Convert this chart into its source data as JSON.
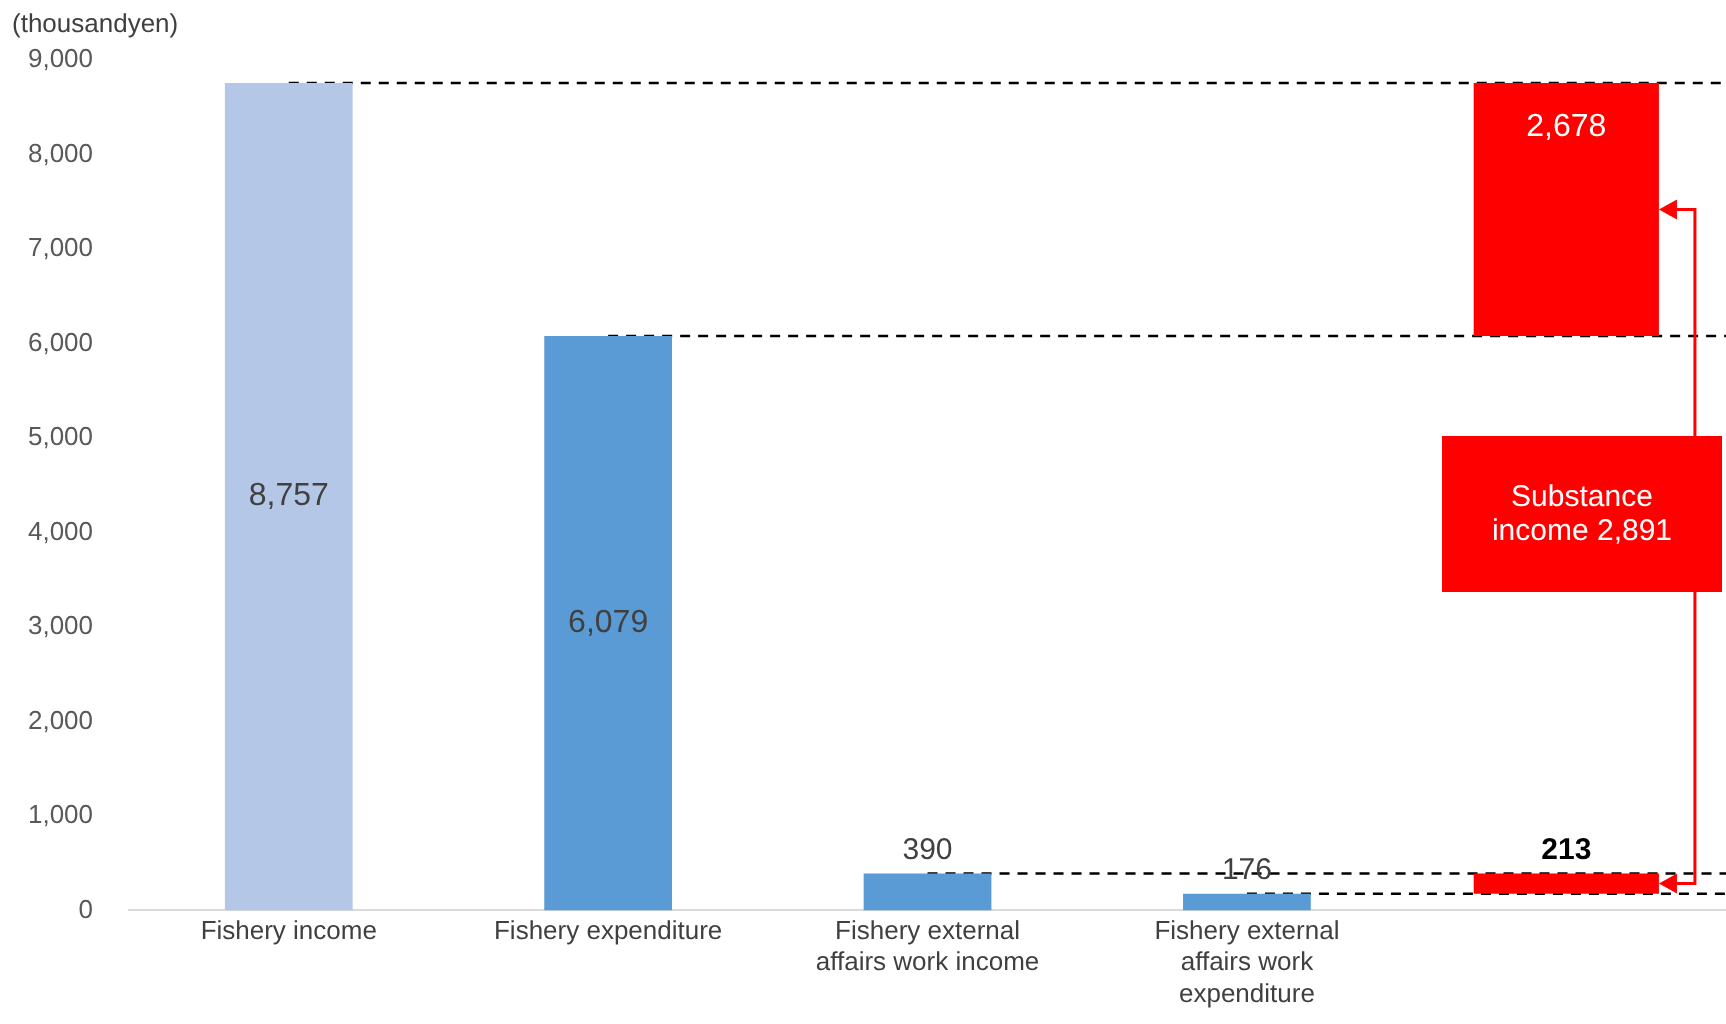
{
  "chart_data": {
    "type": "bar",
    "ylabel": "(thousandyen)",
    "categories": [
      "Fishery income",
      "Fishery expenditure",
      "Fishery external affairs work income",
      "Fishery external affairs work expenditure",
      null
    ],
    "series": [
      {
        "colors": [
          "#b4c7e7",
          "#5b9bd5",
          "#5b9bd5",
          "#5b9bd5",
          null
        ],
        "values": [
          8757,
          6079,
          390,
          176,
          null
        ],
        "value_labels": [
          "8,757",
          "6,079",
          "390",
          "176",
          null
        ]
      },
      {
        "color": "#ff0000",
        "values": [
          null,
          null,
          null,
          null,
          2678
        ],
        "base": [
          null,
          null,
          null,
          null,
          6079
        ],
        "value_labels": [
          null,
          null,
          null,
          null,
          "2,678"
        ]
      },
      {
        "color": "#ff0000",
        "values": [
          null,
          null,
          null,
          null,
          213
        ],
        "base": [
          null,
          null,
          null,
          null,
          177
        ],
        "value_labels": [
          null,
          null,
          null,
          null,
          "213"
        ]
      }
    ],
    "ylim": [
      0,
      9000
    ],
    "yticks": [
      {
        "value": 0,
        "label": "0"
      },
      {
        "value": 1000,
        "label": "1,000"
      },
      {
        "value": 2000,
        "label": "2,000"
      },
      {
        "value": 3000,
        "label": "3,000"
      },
      {
        "value": 4000,
        "label": "4,000"
      },
      {
        "value": 5000,
        "label": "5,000"
      },
      {
        "value": 6000,
        "label": "6,000"
      },
      {
        "value": 7000,
        "label": "7,000"
      },
      {
        "value": 8000,
        "label": "8,000"
      },
      {
        "value": 9000,
        "label": "9,000"
      }
    ],
    "ref_lines": [
      {
        "axis": "y",
        "value": 8757,
        "line_style": "dashed",
        "color": "#000000"
      },
      {
        "axis": "y",
        "value": 6079,
        "line_style": "dashed",
        "color": "#000000"
      },
      {
        "axis": "y",
        "value": 390,
        "line_style": "dashed",
        "color": "#000000"
      },
      {
        "axis": "y",
        "value": 176,
        "line_style": "dashed",
        "color": "#000000"
      }
    ],
    "annotations": [
      "Substance income 2,891"
    ],
    "grid": false,
    "legend": false
  }
}
